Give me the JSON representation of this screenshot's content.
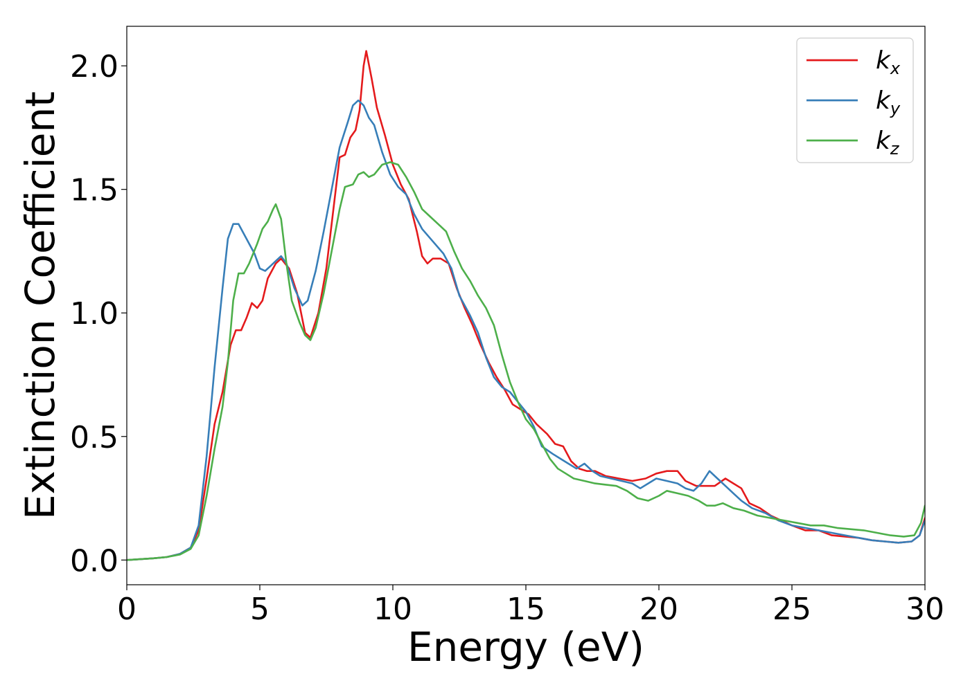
{
  "chart_data": {
    "type": "line",
    "title": "",
    "xlabel": "Energy (eV)",
    "ylabel": "Extinction Coefficient",
    "xlim": [
      0,
      30
    ],
    "ylim": [
      -0.1,
      2.16
    ],
    "xticks": [
      "0",
      "5",
      "10",
      "15",
      "20",
      "25",
      "30"
    ],
    "yticks": [
      "0.0",
      "0.5",
      "1.0",
      "1.5",
      "2.0"
    ],
    "grid": false,
    "legend_position": "top-right",
    "series": [
      {
        "name": "k_x",
        "label_main": "k",
        "label_sub": "x",
        "color": "#e41a1c",
        "points": [
          [
            0,
            0
          ],
          [
            1,
            0.007
          ],
          [
            1.5,
            0.012
          ],
          [
            2,
            0.025
          ],
          [
            2.4,
            0.05
          ],
          [
            2.7,
            0.12
          ],
          [
            3.0,
            0.33
          ],
          [
            3.3,
            0.55
          ],
          [
            3.6,
            0.68
          ],
          [
            3.9,
            0.87
          ],
          [
            4.1,
            0.93
          ],
          [
            4.3,
            0.93
          ],
          [
            4.5,
            0.98
          ],
          [
            4.7,
            1.04
          ],
          [
            4.9,
            1.02
          ],
          [
            5.1,
            1.05
          ],
          [
            5.3,
            1.14
          ],
          [
            5.6,
            1.2
          ],
          [
            5.8,
            1.22
          ],
          [
            6.1,
            1.18
          ],
          [
            6.4,
            1.08
          ],
          [
            6.7,
            0.92
          ],
          [
            6.9,
            0.9
          ],
          [
            7.2,
            1.0
          ],
          [
            7.5,
            1.18
          ],
          [
            7.8,
            1.45
          ],
          [
            8.0,
            1.63
          ],
          [
            8.2,
            1.64
          ],
          [
            8.4,
            1.71
          ],
          [
            8.6,
            1.74
          ],
          [
            8.75,
            1.82
          ],
          [
            8.9,
            2.0
          ],
          [
            9.0,
            2.06
          ],
          [
            9.2,
            1.95
          ],
          [
            9.4,
            1.83
          ],
          [
            9.7,
            1.72
          ],
          [
            10.0,
            1.6
          ],
          [
            10.3,
            1.52
          ],
          [
            10.6,
            1.46
          ],
          [
            10.9,
            1.33
          ],
          [
            11.1,
            1.23
          ],
          [
            11.3,
            1.2
          ],
          [
            11.5,
            1.22
          ],
          [
            11.8,
            1.22
          ],
          [
            12.1,
            1.2
          ],
          [
            12.4,
            1.1
          ],
          [
            12.7,
            1.02
          ],
          [
            13.0,
            0.95
          ],
          [
            13.3,
            0.87
          ],
          [
            13.6,
            0.8
          ],
          [
            13.9,
            0.74
          ],
          [
            14.2,
            0.69
          ],
          [
            14.5,
            0.63
          ],
          [
            14.8,
            0.61
          ],
          [
            15.1,
            0.59
          ],
          [
            15.4,
            0.55
          ],
          [
            15.8,
            0.51
          ],
          [
            16.1,
            0.47
          ],
          [
            16.4,
            0.46
          ],
          [
            16.7,
            0.4
          ],
          [
            17.0,
            0.37
          ],
          [
            17.3,
            0.36
          ],
          [
            17.6,
            0.36
          ],
          [
            18.0,
            0.34
          ],
          [
            18.5,
            0.33
          ],
          [
            19.0,
            0.32
          ],
          [
            19.5,
            0.33
          ],
          [
            19.9,
            0.35
          ],
          [
            20.3,
            0.36
          ],
          [
            20.7,
            0.36
          ],
          [
            21.0,
            0.32
          ],
          [
            21.4,
            0.3
          ],
          [
            21.8,
            0.3
          ],
          [
            22.1,
            0.3
          ],
          [
            22.5,
            0.33
          ],
          [
            22.8,
            0.31
          ],
          [
            23.1,
            0.29
          ],
          [
            23.4,
            0.23
          ],
          [
            23.8,
            0.21
          ],
          [
            24.2,
            0.18
          ],
          [
            24.6,
            0.16
          ],
          [
            25.0,
            0.14
          ],
          [
            25.5,
            0.12
          ],
          [
            26.0,
            0.12
          ],
          [
            26.5,
            0.1
          ],
          [
            27.0,
            0.095
          ],
          [
            27.5,
            0.09
          ],
          [
            28.0,
            0.08
          ],
          [
            28.5,
            0.075
          ],
          [
            29.0,
            0.07
          ],
          [
            29.5,
            0.075
          ],
          [
            29.8,
            0.1
          ],
          [
            30,
            0.17
          ]
        ]
      },
      {
        "name": "k_y",
        "label_main": "k",
        "label_sub": "y",
        "color": "#377eb8",
        "points": [
          [
            0,
            0
          ],
          [
            1,
            0.007
          ],
          [
            1.5,
            0.012
          ],
          [
            2,
            0.025
          ],
          [
            2.4,
            0.05
          ],
          [
            2.7,
            0.14
          ],
          [
            3.0,
            0.42
          ],
          [
            3.3,
            0.78
          ],
          [
            3.6,
            1.1
          ],
          [
            3.8,
            1.3
          ],
          [
            4.0,
            1.36
          ],
          [
            4.2,
            1.36
          ],
          [
            4.5,
            1.3
          ],
          [
            4.8,
            1.24
          ],
          [
            5.0,
            1.18
          ],
          [
            5.2,
            1.17
          ],
          [
            5.4,
            1.19
          ],
          [
            5.6,
            1.21
          ],
          [
            5.8,
            1.23
          ],
          [
            6.0,
            1.2
          ],
          [
            6.3,
            1.1
          ],
          [
            6.6,
            1.03
          ],
          [
            6.8,
            1.05
          ],
          [
            7.1,
            1.17
          ],
          [
            7.4,
            1.33
          ],
          [
            7.7,
            1.5
          ],
          [
            8.0,
            1.67
          ],
          [
            8.3,
            1.77
          ],
          [
            8.5,
            1.84
          ],
          [
            8.7,
            1.86
          ],
          [
            8.9,
            1.84
          ],
          [
            9.1,
            1.79
          ],
          [
            9.3,
            1.76
          ],
          [
            9.6,
            1.65
          ],
          [
            9.9,
            1.56
          ],
          [
            10.2,
            1.51
          ],
          [
            10.5,
            1.48
          ],
          [
            10.8,
            1.4
          ],
          [
            11.1,
            1.34
          ],
          [
            11.5,
            1.29
          ],
          [
            11.9,
            1.24
          ],
          [
            12.2,
            1.18
          ],
          [
            12.5,
            1.07
          ],
          [
            12.9,
            0.99
          ],
          [
            13.2,
            0.92
          ],
          [
            13.5,
            0.82
          ],
          [
            13.8,
            0.74
          ],
          [
            14.1,
            0.7
          ],
          [
            14.4,
            0.68
          ],
          [
            14.7,
            0.64
          ],
          [
            15.0,
            0.6
          ],
          [
            15.3,
            0.54
          ],
          [
            15.6,
            0.46
          ],
          [
            16.0,
            0.43
          ],
          [
            16.3,
            0.41
          ],
          [
            16.6,
            0.39
          ],
          [
            16.9,
            0.37
          ],
          [
            17.2,
            0.39
          ],
          [
            17.5,
            0.36
          ],
          [
            17.8,
            0.34
          ],
          [
            18.2,
            0.33
          ],
          [
            18.6,
            0.32
          ],
          [
            19.0,
            0.31
          ],
          [
            19.3,
            0.29
          ],
          [
            19.6,
            0.31
          ],
          [
            19.9,
            0.33
          ],
          [
            20.3,
            0.32
          ],
          [
            20.7,
            0.31
          ],
          [
            21.0,
            0.29
          ],
          [
            21.3,
            0.28
          ],
          [
            21.6,
            0.31
          ],
          [
            21.9,
            0.36
          ],
          [
            22.2,
            0.33
          ],
          [
            22.5,
            0.3
          ],
          [
            22.8,
            0.27
          ],
          [
            23.1,
            0.24
          ],
          [
            23.5,
            0.21
          ],
          [
            24.0,
            0.19
          ],
          [
            24.5,
            0.16
          ],
          [
            25.0,
            0.14
          ],
          [
            25.5,
            0.13
          ],
          [
            26.0,
            0.12
          ],
          [
            26.5,
            0.11
          ],
          [
            27.0,
            0.1
          ],
          [
            27.5,
            0.09
          ],
          [
            28.0,
            0.08
          ],
          [
            28.5,
            0.075
          ],
          [
            29.0,
            0.07
          ],
          [
            29.5,
            0.075
          ],
          [
            29.8,
            0.1
          ],
          [
            30,
            0.16
          ]
        ]
      },
      {
        "name": "k_z",
        "label_main": "k",
        "label_sub": "z",
        "color": "#4daf4a",
        "points": [
          [
            0,
            0
          ],
          [
            1,
            0.007
          ],
          [
            1.5,
            0.012
          ],
          [
            2,
            0.022
          ],
          [
            2.4,
            0.045
          ],
          [
            2.7,
            0.1
          ],
          [
            3.0,
            0.26
          ],
          [
            3.3,
            0.45
          ],
          [
            3.6,
            0.62
          ],
          [
            3.8,
            0.8
          ],
          [
            4.0,
            1.05
          ],
          [
            4.2,
            1.16
          ],
          [
            4.4,
            1.16
          ],
          [
            4.6,
            1.2
          ],
          [
            4.9,
            1.28
          ],
          [
            5.1,
            1.34
          ],
          [
            5.3,
            1.37
          ],
          [
            5.5,
            1.42
          ],
          [
            5.6,
            1.44
          ],
          [
            5.8,
            1.38
          ],
          [
            6.0,
            1.2
          ],
          [
            6.2,
            1.05
          ],
          [
            6.5,
            0.96
          ],
          [
            6.7,
            0.91
          ],
          [
            6.9,
            0.89
          ],
          [
            7.1,
            0.94
          ],
          [
            7.4,
            1.08
          ],
          [
            7.7,
            1.25
          ],
          [
            8.0,
            1.42
          ],
          [
            8.2,
            1.51
          ],
          [
            8.5,
            1.52
          ],
          [
            8.7,
            1.56
          ],
          [
            8.9,
            1.57
          ],
          [
            9.1,
            1.55
          ],
          [
            9.3,
            1.56
          ],
          [
            9.6,
            1.6
          ],
          [
            9.9,
            1.61
          ],
          [
            10.2,
            1.6
          ],
          [
            10.5,
            1.55
          ],
          [
            10.8,
            1.49
          ],
          [
            11.1,
            1.42
          ],
          [
            11.4,
            1.39
          ],
          [
            11.7,
            1.36
          ],
          [
            12.0,
            1.33
          ],
          [
            12.3,
            1.25
          ],
          [
            12.6,
            1.18
          ],
          [
            12.9,
            1.13
          ],
          [
            13.2,
            1.07
          ],
          [
            13.5,
            1.02
          ],
          [
            13.8,
            0.95
          ],
          [
            14.1,
            0.83
          ],
          [
            14.4,
            0.72
          ],
          [
            14.7,
            0.64
          ],
          [
            15.0,
            0.57
          ],
          [
            15.3,
            0.53
          ],
          [
            15.6,
            0.47
          ],
          [
            15.9,
            0.41
          ],
          [
            16.2,
            0.37
          ],
          [
            16.5,
            0.35
          ],
          [
            16.8,
            0.33
          ],
          [
            17.2,
            0.32
          ],
          [
            17.6,
            0.31
          ],
          [
            18.0,
            0.305
          ],
          [
            18.4,
            0.3
          ],
          [
            18.8,
            0.28
          ],
          [
            19.2,
            0.25
          ],
          [
            19.6,
            0.24
          ],
          [
            20.0,
            0.26
          ],
          [
            20.3,
            0.28
          ],
          [
            20.7,
            0.27
          ],
          [
            21.1,
            0.26
          ],
          [
            21.5,
            0.24
          ],
          [
            21.8,
            0.22
          ],
          [
            22.1,
            0.22
          ],
          [
            22.4,
            0.23
          ],
          [
            22.8,
            0.21
          ],
          [
            23.2,
            0.2
          ],
          [
            23.7,
            0.18
          ],
          [
            24.2,
            0.17
          ],
          [
            24.7,
            0.16
          ],
          [
            25.2,
            0.15
          ],
          [
            25.7,
            0.14
          ],
          [
            26.2,
            0.14
          ],
          [
            26.7,
            0.13
          ],
          [
            27.2,
            0.125
          ],
          [
            27.7,
            0.12
          ],
          [
            28.2,
            0.11
          ],
          [
            28.7,
            0.1
          ],
          [
            29.2,
            0.095
          ],
          [
            29.6,
            0.1
          ],
          [
            29.85,
            0.15
          ],
          [
            30,
            0.22
          ]
        ]
      }
    ]
  }
}
